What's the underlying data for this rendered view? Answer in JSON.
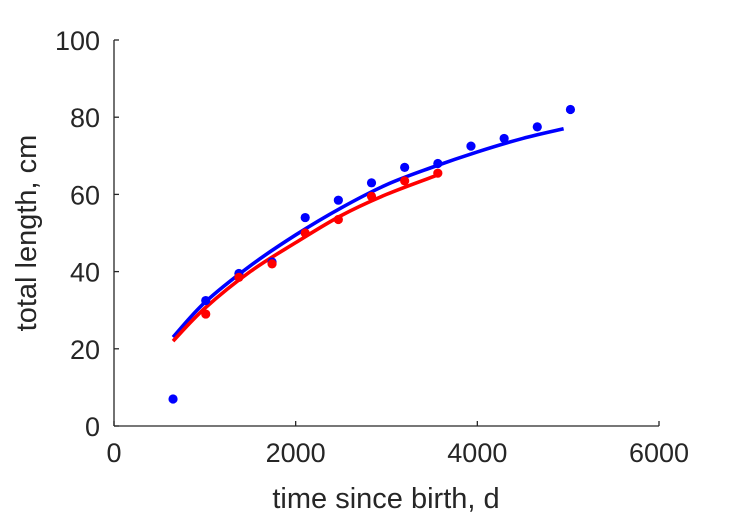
{
  "chart_data": {
    "type": "scatter",
    "title": "",
    "xlabel": "time since birth, d",
    "ylabel": "total length, cm",
    "xlim": [
      0,
      6000
    ],
    "ylim": [
      0,
      100
    ],
    "xticks": [
      0,
      2000,
      4000,
      6000
    ],
    "yticks": [
      0,
      20,
      40,
      60,
      80,
      100
    ],
    "xtick_labels": [
      "0",
      "2000",
      "4000",
      "6000"
    ],
    "ytick_labels": [
      "0",
      "20",
      "40",
      "60",
      "80",
      "100"
    ],
    "grid": false,
    "legend": "none",
    "series": [
      {
        "color": "#0000ff",
        "points": [
          {
            "x": 650,
            "y": 7
          },
          {
            "x": 1010,
            "y": 32.5
          },
          {
            "x": 1375,
            "y": 39.5
          },
          {
            "x": 1740,
            "y": 42.5
          },
          {
            "x": 2105,
            "y": 54
          },
          {
            "x": 2470,
            "y": 58.5
          },
          {
            "x": 2835,
            "y": 63
          },
          {
            "x": 3200,
            "y": 67
          },
          {
            "x": 3565,
            "y": 68
          },
          {
            "x": 3930,
            "y": 72.5
          },
          {
            "x": 4295,
            "y": 74.5
          },
          {
            "x": 4660,
            "y": 77.5
          },
          {
            "x": 5025,
            "y": 82
          }
        ],
        "fit": [
          {
            "x": 650,
            "y": 23
          },
          {
            "x": 1000,
            "y": 32
          },
          {
            "x": 1500,
            "y": 41.5
          },
          {
            "x": 2000,
            "y": 49.5
          },
          {
            "x": 2500,
            "y": 56.5
          },
          {
            "x": 3000,
            "y": 62.5
          },
          {
            "x": 3500,
            "y": 67
          },
          {
            "x": 4000,
            "y": 71
          },
          {
            "x": 4500,
            "y": 74.5
          },
          {
            "x": 4950,
            "y": 77
          }
        ]
      },
      {
        "color": "#ff0000",
        "points": [
          {
            "x": 1010,
            "y": 29
          },
          {
            "x": 1375,
            "y": 38.5
          },
          {
            "x": 1740,
            "y": 42
          },
          {
            "x": 2105,
            "y": 50
          },
          {
            "x": 2470,
            "y": 53.5
          },
          {
            "x": 2835,
            "y": 59.5
          },
          {
            "x": 3200,
            "y": 63.5
          },
          {
            "x": 3565,
            "y": 65.5
          }
        ],
        "fit": [
          {
            "x": 650,
            "y": 22
          },
          {
            "x": 1000,
            "y": 30.5
          },
          {
            "x": 1500,
            "y": 40
          },
          {
            "x": 2000,
            "y": 47.5
          },
          {
            "x": 2500,
            "y": 54.5
          },
          {
            "x": 3000,
            "y": 60
          },
          {
            "x": 3560,
            "y": 65
          }
        ]
      }
    ]
  }
}
